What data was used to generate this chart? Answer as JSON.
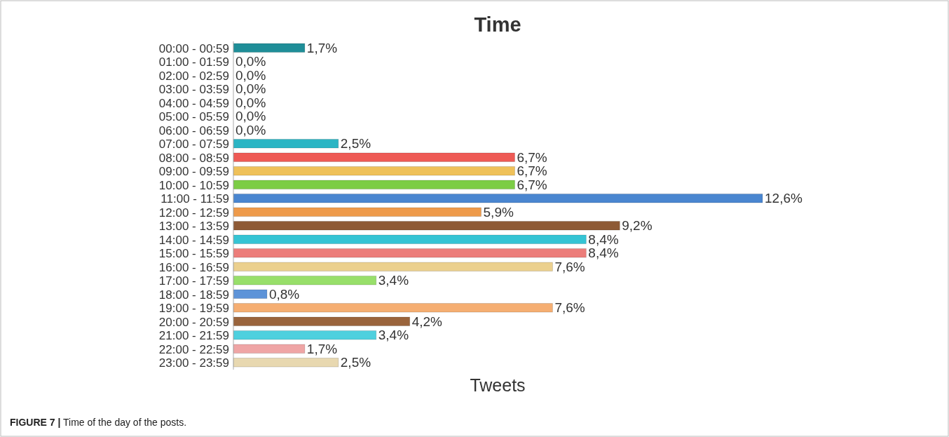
{
  "chart_data": {
    "type": "bar",
    "orientation": "horizontal",
    "title": "Time",
    "xlabel": "Tweets",
    "categories": [
      "00:00 - 00:59",
      "01:00 - 01:59",
      "02:00 - 02:59",
      "03:00 - 03:59",
      "04:00 - 04:59",
      "05:00 - 05:59",
      "06:00 - 06:59",
      "07:00 - 07:59",
      "08:00 - 08:59",
      "09:00 - 09:59",
      "10:00 - 10:59",
      "11:00 - 11:59",
      "12:00 - 12:59",
      "13:00 - 13:59",
      "14:00 - 14:59",
      "15:00 - 15:59",
      "16:00 - 16:59",
      "17:00 - 17:59",
      "18:00 - 18:59",
      "19:00 - 19:59",
      "20:00 - 20:59",
      "21:00 - 21:59",
      "22:00 - 22:59",
      "23:00 - 23:59"
    ],
    "values": [
      1.7,
      0,
      0,
      0,
      0,
      0,
      0,
      2.5,
      6.7,
      6.7,
      6.7,
      12.6,
      5.9,
      9.2,
      8.4,
      8.4,
      7.6,
      3.4,
      0.8,
      7.6,
      4.2,
      3.4,
      1.7,
      2.5
    ],
    "value_labels": [
      "1,7%",
      "0,0%",
      "0,0%",
      "0,0%",
      "0,0%",
      "0,0%",
      "0,0%",
      "2,5%",
      "6,7%",
      "6,7%",
      "6,7%",
      "12,6%",
      "5,9%",
      "9,2%",
      "8,4%",
      "8,4%",
      "7,6%",
      "3,4%",
      "0,8%",
      "7,6%",
      "4,2%",
      "3,4%",
      "1,7%",
      "2,5%"
    ],
    "colors": [
      "#1f8e98",
      "#1f8e98",
      "#1f8e98",
      "#1f8e98",
      "#1f8e98",
      "#1f8e98",
      "#1f8e98",
      "#2bb5c4",
      "#ee5a55",
      "#efc15a",
      "#7ccd45",
      "#4a86d0",
      "#ee9a4a",
      "#8e5a35",
      "#35c4d4",
      "#ec7d7a",
      "#ebd08e",
      "#98df6a",
      "#5d93d8",
      "#f5ae72",
      "#9a643c",
      "#4ed0de",
      "#efa5a5",
      "#e8d8b0"
    ],
    "annotations": [
      "FIGURE 7 | Time of the day of the posts."
    ]
  }
}
